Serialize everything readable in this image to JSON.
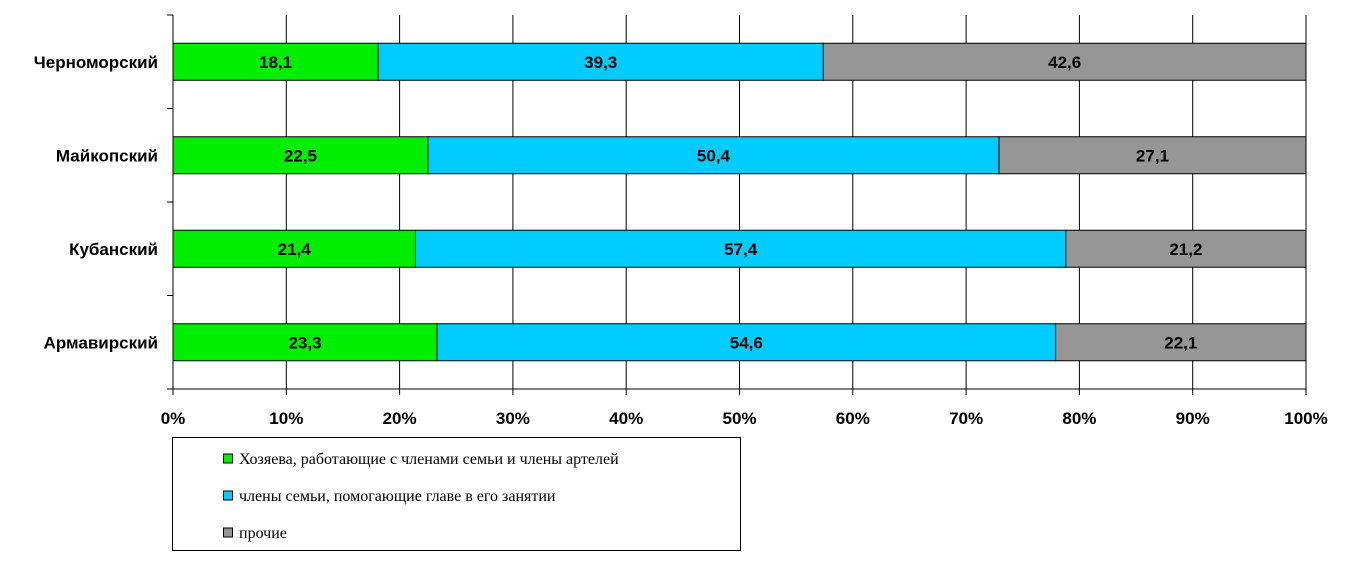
{
  "chart_data": {
    "type": "bar",
    "orientation": "horizontal",
    "stacked": "percent",
    "categories": [
      "Черноморский",
      "Майкопский",
      "Кубанский",
      "Армавирский"
    ],
    "series": [
      {
        "name": "Хозяева, работающие с членами семьи и члены артелей",
        "color": "#00ee00",
        "values": [
          18.1,
          22.5,
          21.4,
          23.3
        ],
        "labels": [
          "18,1",
          "22,5",
          "21,4",
          "23,3"
        ]
      },
      {
        "name": "члены семьи, помогающие главе в его занятии",
        "color": "#00ccff",
        "values": [
          39.3,
          50.4,
          57.4,
          54.6
        ],
        "labels": [
          "39,3",
          "50,4",
          "57,4",
          "54,6"
        ]
      },
      {
        "name": "прочие",
        "color": "#969696",
        "values": [
          42.6,
          27.1,
          21.2,
          22.1
        ],
        "labels": [
          "42,6",
          "27,1",
          "21,2",
          "22,1"
        ]
      }
    ],
    "xticks": [
      "0%",
      "10%",
      "20%",
      "30%",
      "40%",
      "50%",
      "60%",
      "70%",
      "80%",
      "90%",
      "100%"
    ],
    "xlim": [
      0,
      100
    ],
    "grid": true,
    "legend_position": "bottom-left"
  }
}
